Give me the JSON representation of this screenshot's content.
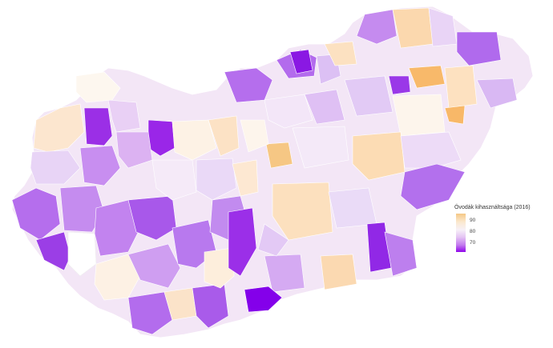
{
  "map": {
    "fill_scale": {
      "high_color": "#f6c27a",
      "mid_color": "#fbf6fb",
      "low_color": "#8c00e8"
    }
  },
  "legend": {
    "title": "Óvodák kihasználtsága (2016)",
    "ticks": [
      "90",
      "80",
      "70"
    ]
  }
}
